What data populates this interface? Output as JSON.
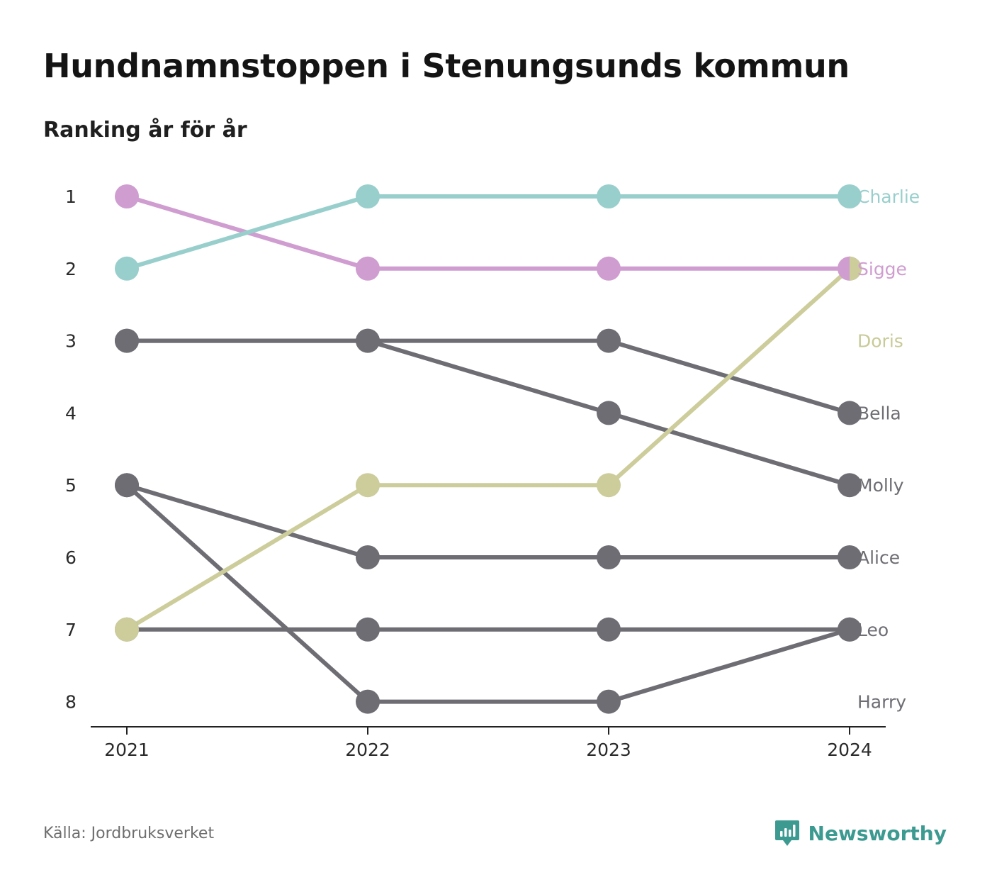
{
  "title": "Hundnamnstoppen i Stenungsunds kommun",
  "subtitle": "Ranking år för år",
  "source": "Källa: Jordbruksverket",
  "brand": {
    "name": "Newsworthy",
    "icon": "newsworthy-logo-icon",
    "color": "#3d9a91"
  },
  "chart_data": {
    "type": "line",
    "subtype": "bump",
    "x": [
      2021,
      2022,
      2023,
      2024
    ],
    "x_tick_labels": [
      "2021",
      "2022",
      "2023",
      "2024"
    ],
    "y_tick_labels": [
      "1",
      "2",
      "3",
      "4",
      "5",
      "6",
      "7",
      "8"
    ],
    "y_reversed": true,
    "ylim": [
      1,
      8
    ],
    "grid": false,
    "legend": "direct labels at right end of lines",
    "series": [
      {
        "name": "Bella",
        "color": "#6d6d73",
        "values": [
          3,
          3,
          3,
          4
        ]
      },
      {
        "name": "Molly",
        "color": "#6d6d73",
        "values": [
          3,
          3,
          4,
          5
        ]
      },
      {
        "name": "Alice",
        "color": "#6d6d73",
        "values": [
          5,
          6,
          6,
          6
        ]
      },
      {
        "name": "Leo",
        "color": "#6d6d73",
        "values": [
          7,
          7,
          7,
          7
        ]
      },
      {
        "name": "Harry",
        "color": "#6d6d73",
        "values": [
          5,
          8,
          8,
          7
        ]
      },
      {
        "name": "Doris",
        "color": "#cccd9b",
        "values": [
          7,
          5,
          5,
          2
        ]
      },
      {
        "name": "Sigge",
        "color": "#cf9dd0",
        "values": [
          1,
          2,
          2,
          2
        ]
      },
      {
        "name": "Charlie",
        "color": "#98cfcc",
        "values": [
          2,
          1,
          1,
          1
        ]
      }
    ],
    "end_labels": [
      {
        "name": "Charlie",
        "rank": 1,
        "color": "#98cfcc"
      },
      {
        "name": "Sigge",
        "rank": 2,
        "color": "#cf9dd0"
      },
      {
        "name": "Doris",
        "rank": 3,
        "color": "#c8ca98"
      },
      {
        "name": "Bella",
        "rank": 4,
        "color": "#6d6d73"
      },
      {
        "name": "Molly",
        "rank": 5,
        "color": "#6d6d73"
      },
      {
        "name": "Alice",
        "rank": 6,
        "color": "#6d6d73"
      },
      {
        "name": "Leo",
        "rank": 7,
        "color": "#6d6d73"
      },
      {
        "name": "Harry",
        "rank": 8,
        "color": "#6d6d73"
      }
    ]
  }
}
